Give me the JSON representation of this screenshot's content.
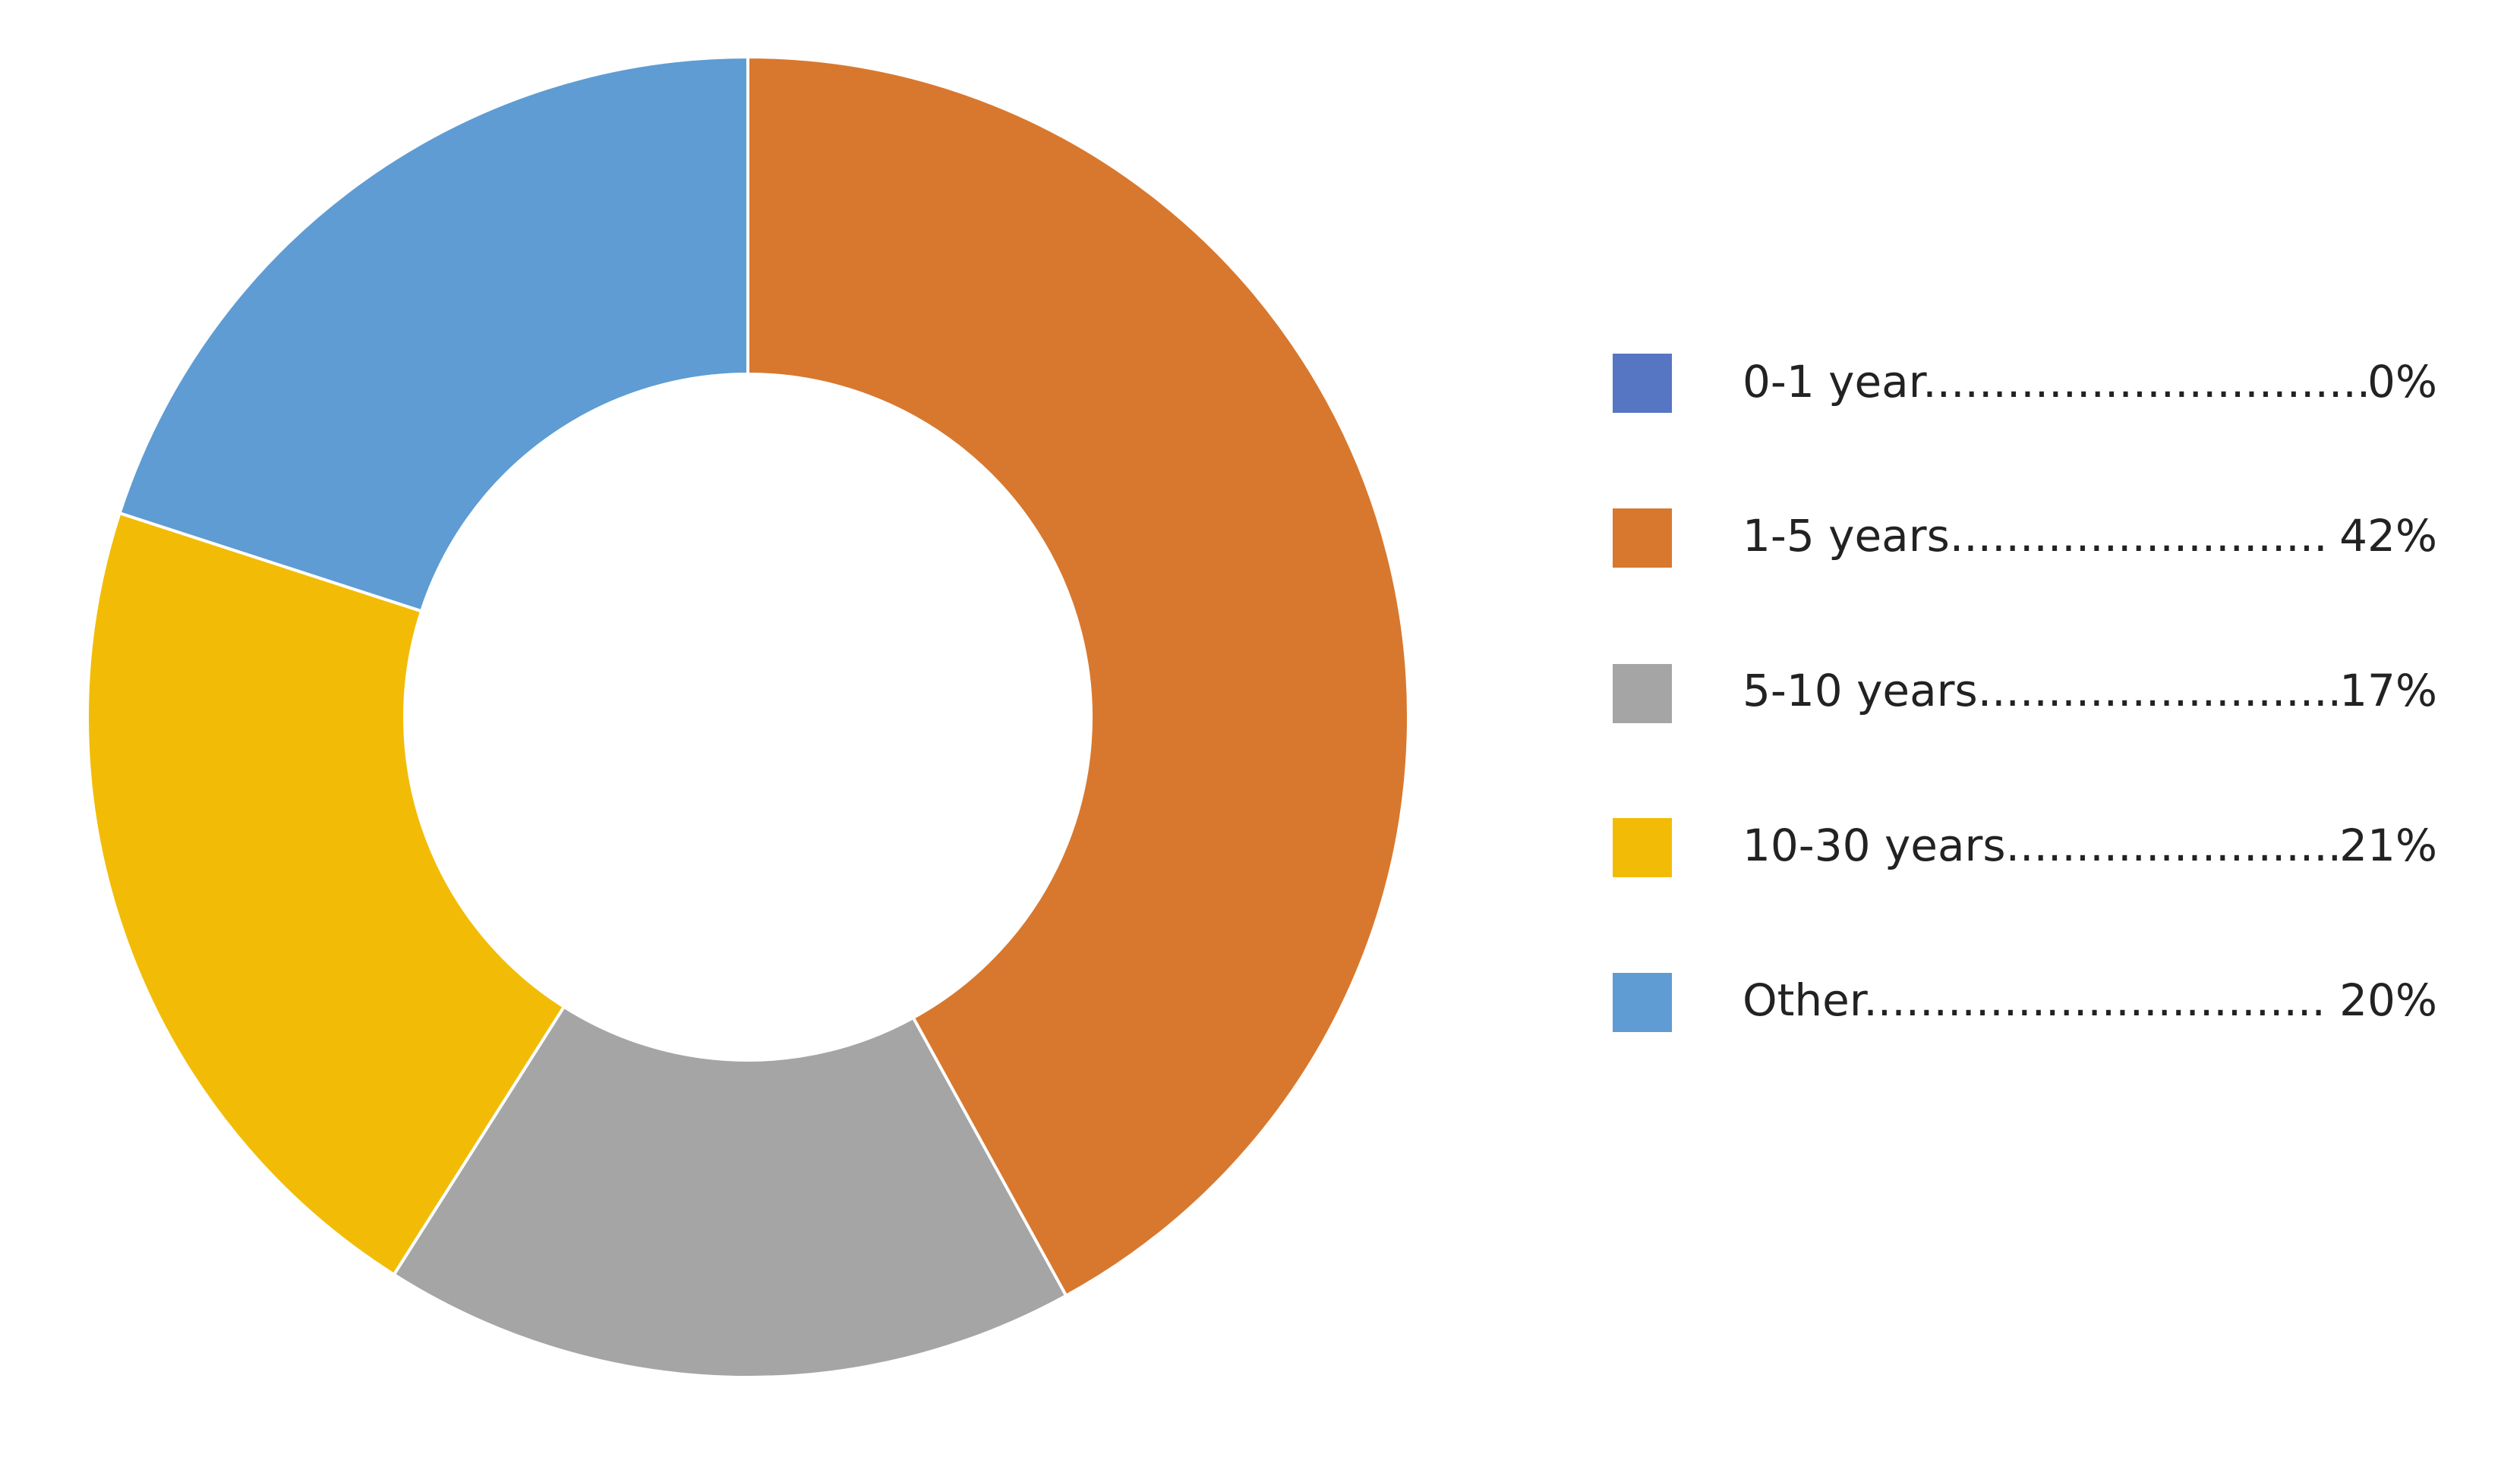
{
  "chart_data": {
    "type": "pie",
    "donut": true,
    "title": "",
    "categories": [
      "0-1 year",
      "1-5 years",
      "5-10 years",
      "10-30 years",
      "Other"
    ],
    "values": [
      0,
      42,
      17,
      21,
      20
    ],
    "colors": [
      "#5676C4",
      "#D8782E",
      "#A5A5A5",
      "#F2BC06",
      "#5E9CD3"
    ],
    "legend": {
      "position": "right",
      "entries": [
        {
          "label": "0-1 year",
          "dots": "................................",
          "value": "0%"
        },
        {
          "label": "1-5 years",
          "dots": "...........................",
          "value": "42%"
        },
        {
          "label": "5-10 years",
          "dots": "..........................",
          "value": "17%"
        },
        {
          "label": "10-30 years",
          "dots": "........................",
          "value": "21%"
        },
        {
          "label": "Other",
          "dots": ".................................",
          "value": "20%"
        }
      ]
    }
  }
}
